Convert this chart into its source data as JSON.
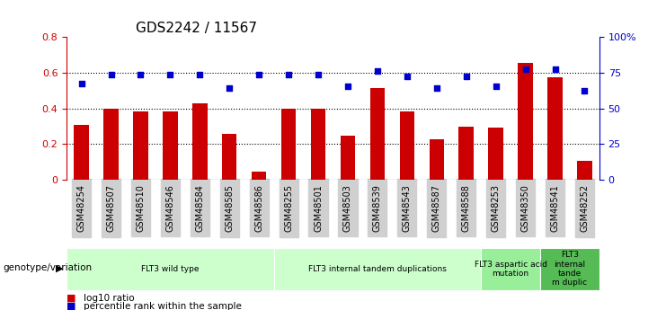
{
  "title": "GDS2242 / 11567",
  "samples": [
    "GSM48254",
    "GSM48507",
    "GSM48510",
    "GSM48546",
    "GSM48584",
    "GSM48585",
    "GSM48586",
    "GSM48255",
    "GSM48501",
    "GSM48503",
    "GSM48539",
    "GSM48543",
    "GSM48587",
    "GSM48588",
    "GSM48253",
    "GSM48350",
    "GSM48541",
    "GSM48252"
  ],
  "bar_values": [
    0.31,
    0.4,
    0.385,
    0.385,
    0.43,
    0.26,
    0.045,
    0.4,
    0.4,
    0.245,
    0.515,
    0.385,
    0.225,
    0.3,
    0.295,
    0.655,
    0.575,
    0.105
  ],
  "dot_values": [
    67.5,
    73.5,
    73.5,
    73.5,
    73.5,
    64.5,
    73.5,
    73.5,
    73.5,
    65.5,
    76.0,
    72.5,
    64.5,
    72.5,
    65.5,
    77.5,
    77.5,
    62.5
  ],
  "bar_color": "#cc0000",
  "dot_color": "#0000cc",
  "ylim_left": [
    0,
    0.8
  ],
  "ylim_right": [
    0,
    100
  ],
  "yticks_left": [
    0,
    0.2,
    0.4,
    0.6,
    0.8
  ],
  "yticks_right": [
    0,
    25,
    50,
    75,
    100
  ],
  "ytick_labels_right": [
    "0",
    "25",
    "50",
    "75",
    "100%"
  ],
  "hlines": [
    0.2,
    0.4,
    0.6
  ],
  "group_label": "genotype/variation",
  "legend_bar": "log10 ratio",
  "legend_dot": "percentile rank within the sample",
  "group_info": [
    {
      "label": "FLT3 wild type",
      "start": 0,
      "end": 6,
      "color": "#ccffcc"
    },
    {
      "label": "FLT3 internal tandem duplications",
      "start": 7,
      "end": 13,
      "color": "#ccffcc"
    },
    {
      "label": "FLT3 aspartic acid\nmutation",
      "start": 14,
      "end": 15,
      "color": "#99ee99"
    },
    {
      "label": "FLT3\ninternal\ntande\nm duplic",
      "start": 16,
      "end": 17,
      "color": "#55bb55"
    }
  ]
}
